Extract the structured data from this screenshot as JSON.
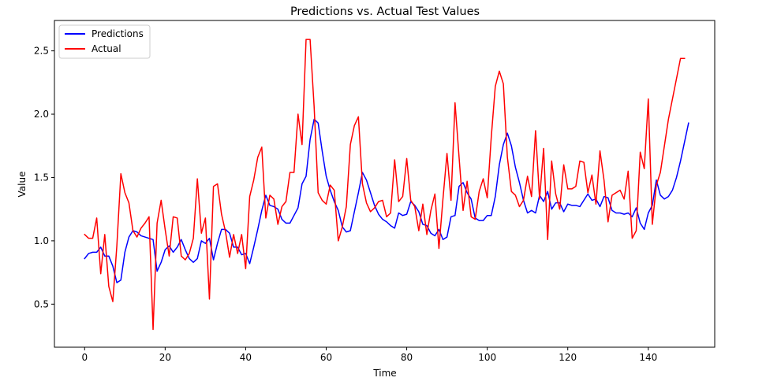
{
  "chart_data": {
    "type": "line",
    "title": "Predictions vs. Actual Test Values",
    "xlabel": "Time",
    "ylabel": "Value",
    "xlim": [
      -7.5,
      156.5
    ],
    "ylim": [
      0.16,
      2.74
    ],
    "xticks": [
      0,
      20,
      40,
      60,
      80,
      100,
      120,
      140
    ],
    "yticks": [
      0.5,
      1.0,
      1.5,
      2.0,
      2.5
    ],
    "ytick_labels": [
      "0.5",
      "1.0",
      "1.5",
      "2.0",
      "2.5"
    ],
    "grid": false,
    "legend_placement": "top-left",
    "series": [
      {
        "name": "Predictions",
        "color": "#0000ff",
        "values": [
          0.86,
          0.9,
          0.91,
          0.91,
          0.95,
          0.88,
          0.88,
          0.8,
          0.67,
          0.69,
          0.91,
          1.03,
          1.08,
          1.07,
          1.04,
          1.03,
          1.02,
          1.01,
          0.76,
          0.83,
          0.93,
          0.96,
          0.91,
          0.95,
          1.01,
          0.93,
          0.86,
          0.83,
          0.86,
          1.0,
          0.98,
          1.02,
          0.85,
          0.98,
          1.09,
          1.09,
          1.06,
          0.95,
          0.95,
          0.89,
          0.9,
          0.82,
          0.95,
          1.09,
          1.24,
          1.36,
          1.28,
          1.27,
          1.25,
          1.17,
          1.14,
          1.14,
          1.2,
          1.26,
          1.45,
          1.51,
          1.8,
          1.96,
          1.93,
          1.71,
          1.51,
          1.4,
          1.31,
          1.24,
          1.11,
          1.07,
          1.08,
          1.23,
          1.38,
          1.54,
          1.48,
          1.38,
          1.28,
          1.21,
          1.17,
          1.15,
          1.12,
          1.1,
          1.22,
          1.2,
          1.21,
          1.31,
          1.28,
          1.23,
          1.13,
          1.12,
          1.06,
          1.04,
          1.09,
          1.01,
          1.03,
          1.19,
          1.2,
          1.43,
          1.46,
          1.38,
          1.33,
          1.18,
          1.16,
          1.16,
          1.2,
          1.2,
          1.35,
          1.6,
          1.76,
          1.85,
          1.75,
          1.58,
          1.46,
          1.32,
          1.22,
          1.24,
          1.22,
          1.36,
          1.31,
          1.39,
          1.25,
          1.3,
          1.3,
          1.23,
          1.29,
          1.28,
          1.28,
          1.27,
          1.32,
          1.37,
          1.32,
          1.33,
          1.27,
          1.35,
          1.34,
          1.24,
          1.22,
          1.22,
          1.21,
          1.22,
          1.19,
          1.26,
          1.14,
          1.09,
          1.22,
          1.28,
          1.48,
          1.36,
          1.33,
          1.35,
          1.4,
          1.5,
          1.63,
          1.78,
          1.93
        ]
      },
      {
        "name": "Actual",
        "color": "#ff0000",
        "values": [
          1.05,
          1.02,
          1.02,
          1.18,
          0.74,
          1.05,
          0.64,
          0.52,
          0.96,
          1.53,
          1.38,
          1.3,
          1.08,
          1.03,
          1.1,
          1.14,
          1.19,
          0.3,
          1.14,
          1.32,
          1.09,
          0.88,
          1.19,
          1.18,
          0.88,
          0.85,
          0.9,
          1.02,
          1.49,
          1.06,
          1.18,
          0.54,
          1.43,
          1.45,
          1.21,
          1.07,
          0.87,
          1.05,
          0.9,
          1.05,
          0.78,
          1.35,
          1.48,
          1.66,
          1.74,
          1.18,
          1.36,
          1.33,
          1.13,
          1.27,
          1.31,
          1.54,
          1.54,
          2.0,
          1.76,
          2.59,
          2.59,
          2.06,
          1.38,
          1.32,
          1.29,
          1.44,
          1.4,
          1.0,
          1.11,
          1.27,
          1.76,
          1.91,
          1.98,
          1.45,
          1.3,
          1.23,
          1.26,
          1.31,
          1.32,
          1.19,
          1.22,
          1.64,
          1.31,
          1.35,
          1.65,
          1.32,
          1.27,
          1.08,
          1.29,
          1.05,
          1.24,
          1.37,
          0.94,
          1.33,
          1.69,
          1.32,
          2.09,
          1.66,
          1.24,
          1.47,
          1.19,
          1.17,
          1.39,
          1.49,
          1.34,
          1.82,
          2.22,
          2.34,
          2.24,
          1.66,
          1.39,
          1.36,
          1.27,
          1.32,
          1.51,
          1.35,
          1.87,
          1.33,
          1.73,
          1.01,
          1.63,
          1.37,
          1.25,
          1.6,
          1.41,
          1.41,
          1.43,
          1.63,
          1.62,
          1.38,
          1.52,
          1.29,
          1.71,
          1.48,
          1.15,
          1.36,
          1.38,
          1.4,
          1.33,
          1.55,
          1.02,
          1.08,
          1.7,
          1.57,
          2.12,
          1.13,
          1.44,
          1.54,
          1.75,
          1.96,
          2.12,
          2.28,
          2.44,
          2.44
        ]
      }
    ]
  }
}
